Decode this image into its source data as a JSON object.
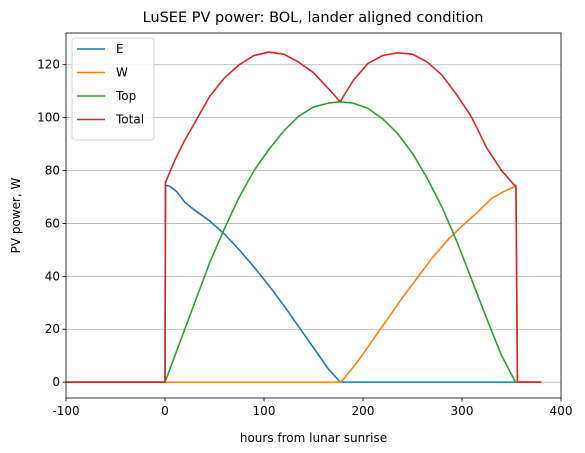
{
  "chart_data": {
    "type": "line",
    "title": "LuSEE PV power: BOL, lander aligned condition",
    "xlabel": "hours from lunar sunrise",
    "ylabel": "PV power, W",
    "xlim": [
      -100,
      400
    ],
    "ylim": [
      -6,
      132
    ],
    "xticks": [
      -100,
      0,
      100,
      200,
      300,
      400
    ],
    "yticks": [
      0,
      20,
      40,
      60,
      80,
      100,
      120
    ],
    "grid": "horizontal",
    "legend_position": "top-left",
    "series": [
      {
        "name": "E",
        "color": "#1f77b4",
        "x": [
          -100,
          -0.1,
          0,
          0.5,
          5,
          12,
          20,
          30,
          45,
          60,
          75,
          90,
          105,
          120,
          135,
          150,
          165,
          177,
          180,
          250,
          300,
          355,
          380
        ],
        "y": [
          0,
          0,
          0,
          74.5,
          74,
          72,
          68,
          65,
          61,
          56,
          50,
          43.5,
          36.5,
          29,
          21,
          13,
          5,
          0,
          0,
          0,
          0,
          0,
          0
        ]
      },
      {
        "name": "W",
        "color": "#ff7f0e",
        "x": [
          -100,
          0,
          100,
          177,
          180,
          195,
          210,
          225,
          240,
          255,
          270,
          285,
          300,
          315,
          330,
          342,
          354,
          354.5,
          356,
          380
        ],
        "y": [
          0,
          0,
          0,
          0,
          1,
          8,
          16,
          24,
          32,
          39.5,
          47,
          53.5,
          59,
          64,
          69.5,
          72,
          74,
          74.5,
          0,
          0
        ]
      },
      {
        "name": "Top",
        "color": "#2ca02c",
        "x": [
          -100,
          0,
          10,
          20,
          30,
          45,
          60,
          75,
          90,
          105,
          120,
          135,
          150,
          165,
          177,
          190,
          205,
          220,
          235,
          250,
          265,
          280,
          295,
          310,
          325,
          340,
          354,
          356,
          380
        ],
        "y": [
          0,
          0,
          10,
          20,
          30,
          45,
          58,
          70,
          80,
          88,
          95,
          100.5,
          104,
          105.5,
          106,
          105.5,
          103.5,
          99.5,
          94,
          86.5,
          77,
          66,
          53,
          38.5,
          24,
          10,
          0,
          0,
          0
        ]
      },
      {
        "name": "Total",
        "color": "#d62728",
        "x": [
          -100,
          -0.1,
          0,
          0.5,
          10,
          20,
          30,
          45,
          60,
          75,
          90,
          105,
          120,
          135,
          150,
          165,
          177,
          190,
          205,
          220,
          235,
          250,
          265,
          280,
          295,
          310,
          325,
          340,
          354,
          354.5,
          356,
          380
        ],
        "y": [
          0,
          0,
          0,
          75.5,
          84,
          91.5,
          98,
          108,
          115,
          120,
          123.5,
          124.8,
          124,
          121,
          117,
          111,
          106,
          114,
          120.5,
          123.5,
          124.5,
          124,
          121,
          116,
          108.5,
          100,
          88.5,
          80,
          74,
          73.5,
          0,
          0
        ]
      }
    ]
  }
}
